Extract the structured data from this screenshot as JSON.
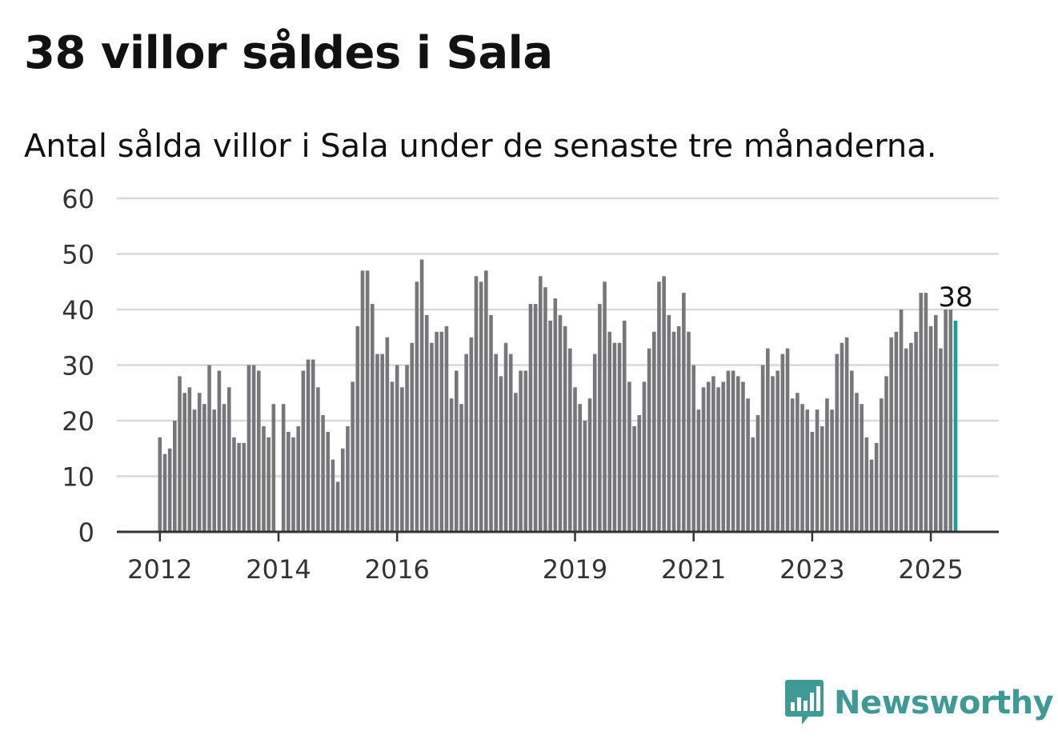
{
  "header": {
    "title": "38 villor såldes i Sala",
    "subtitle": "Antal sålda villor i Sala under de senaste tre månaderna."
  },
  "brand": {
    "name": "Newsworthy",
    "color": "#3d9a95"
  },
  "colors": {
    "bar": "#76767b",
    "highlight": "#1a9e96",
    "grid": "#d9d9d9",
    "axis": "#333333"
  },
  "chart_data": {
    "type": "bar",
    "title": "38 villor såldes i Sala",
    "subtitle": "Antal sålda villor i Sala under de senaste tre månaderna.",
    "ylim": [
      0,
      60
    ],
    "yticks": [
      0,
      10,
      20,
      30,
      40,
      50,
      60
    ],
    "x_ticks": [
      {
        "label": "2012",
        "index": 0
      },
      {
        "label": "2014",
        "index": 24
      },
      {
        "label": "2016",
        "index": 48
      },
      {
        "label": "2019",
        "index": 84
      },
      {
        "label": "2021",
        "index": 108
      },
      {
        "label": "2023",
        "index": 132
      },
      {
        "label": "2025",
        "index": 156
      }
    ],
    "grid": true,
    "start": "2012-01",
    "frequency": "monthly",
    "values": [
      17,
      14,
      15,
      20,
      28,
      25,
      26,
      22,
      25,
      23,
      30,
      22,
      29,
      23,
      26,
      17,
      16,
      16,
      30,
      30,
      29,
      19,
      17,
      23,
      0,
      23,
      18,
      17,
      19,
      29,
      31,
      31,
      26,
      21,
      18,
      13,
      9,
      15,
      19,
      27,
      37,
      47,
      47,
      41,
      32,
      32,
      35,
      27,
      30,
      26,
      30,
      34,
      45,
      49,
      39,
      34,
      36,
      36,
      37,
      24,
      29,
      23,
      32,
      35,
      46,
      45,
      47,
      39,
      32,
      28,
      34,
      32,
      25,
      29,
      29,
      41,
      41,
      46,
      44,
      38,
      42,
      39,
      37,
      33,
      26,
      23,
      20,
      24,
      32,
      41,
      45,
      36,
      34,
      34,
      38,
      27,
      19,
      21,
      27,
      33,
      36,
      45,
      46,
      39,
      36,
      37,
      43,
      36,
      30,
      22,
      26,
      27,
      28,
      26,
      27,
      29,
      29,
      28,
      27,
      24,
      17,
      21,
      30,
      33,
      28,
      29,
      32,
      33,
      24,
      25,
      23,
      22,
      18,
      22,
      19,
      24,
      22,
      32,
      34,
      35,
      29,
      25,
      23,
      17,
      13,
      16,
      24,
      28,
      35,
      36,
      40,
      33,
      34,
      36,
      43,
      43,
      37,
      39,
      33,
      40,
      40,
      38
    ],
    "highlight": {
      "index": 161,
      "value": 38,
      "label": "38"
    }
  }
}
